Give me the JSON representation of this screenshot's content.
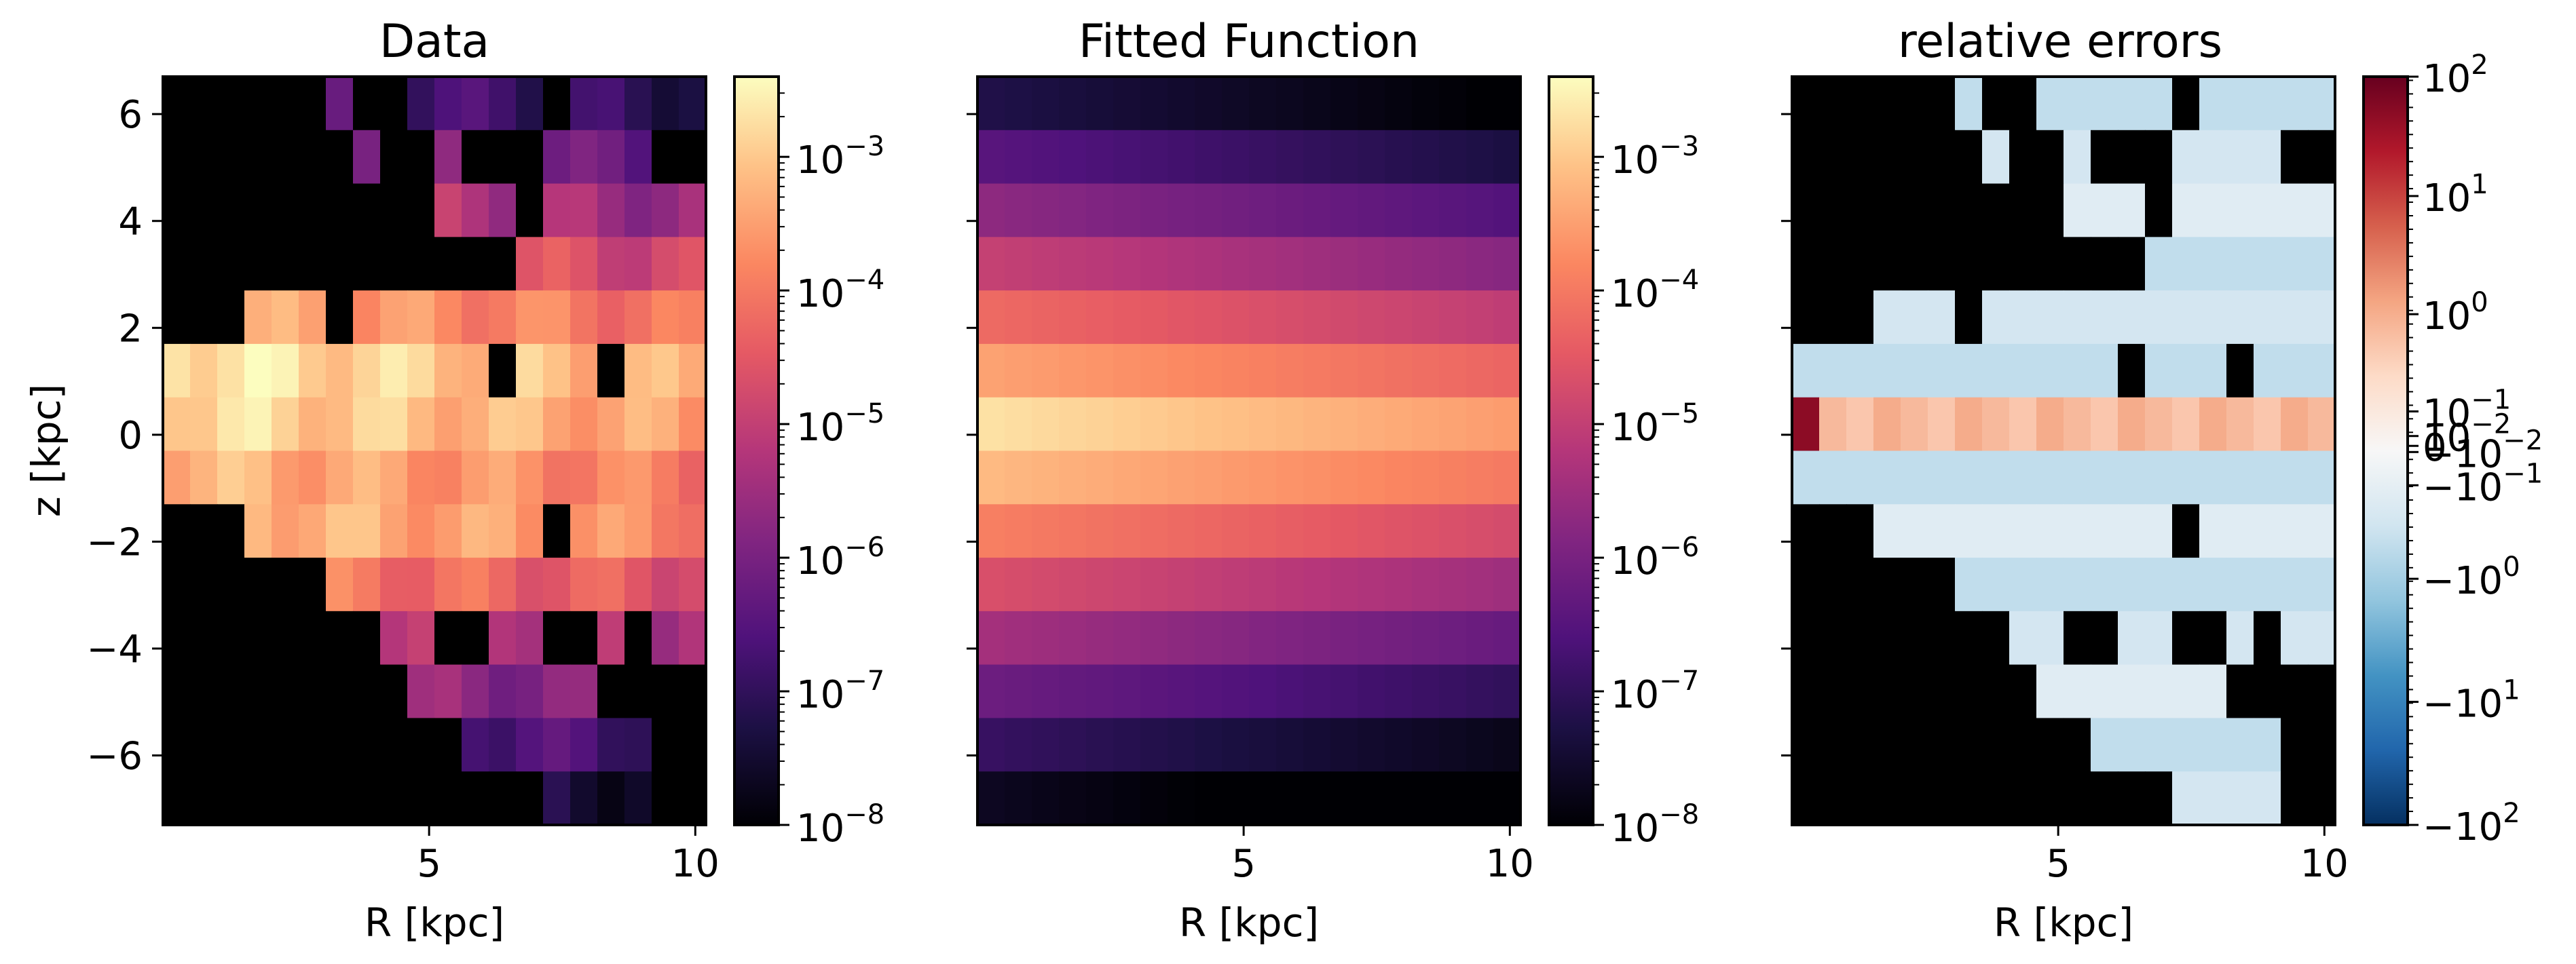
{
  "chart_data": [
    {
      "type": "heatmap",
      "title": "Data",
      "xlabel": "R [kpc]",
      "ylabel": "z [kpc]",
      "xlim": [
        0.0,
        10.2
      ],
      "ylim": [
        -7.3,
        6.7
      ],
      "xticks": [
        5,
        10
      ],
      "xtick_labels": [
        "5",
        "10"
      ],
      "yticks": [
        6,
        4,
        2,
        0,
        -2,
        -4,
        -6
      ],
      "ytick_labels": [
        "6",
        "4",
        "2",
        "0",
        "−2",
        "−4",
        "−6"
      ],
      "grid": false,
      "colormap": "magma",
      "color_scale": "log",
      "colorbar": {
        "vmin_exp": -8,
        "vmax_exp": -2.4,
        "tick_exps": [
          -8,
          -7,
          -6,
          -5,
          -4,
          -3
        ],
        "tick_base": "10",
        "tick_exps_labels": [
          "−8",
          "−7",
          "−6",
          "−5",
          "−4",
          "−3"
        ]
      },
      "cells": "log10 density per (R,z) bin; null = empty bin (black)"
    },
    {
      "type": "heatmap",
      "title": "Fitted Function",
      "xlabel": "R [kpc]",
      "xlim": [
        0.0,
        10.2
      ],
      "ylim": [
        -7.3,
        6.7
      ],
      "xticks": [
        5,
        10
      ],
      "xtick_labels": [
        "5",
        "10"
      ],
      "colormap": "magma",
      "color_scale": "log",
      "colorbar": {
        "vmin_exp": -8,
        "vmax_exp": -2.4,
        "tick_exps": [
          -8,
          -7,
          -6,
          -5,
          -4,
          -3
        ],
        "tick_base": "10",
        "tick_exps_labels": [
          "−8",
          "−7",
          "−6",
          "−5",
          "−4",
          "−3"
        ]
      }
    },
    {
      "type": "heatmap",
      "title": "relative errors",
      "xlabel": "R [kpc]",
      "xlim": [
        0.0,
        10.2
      ],
      "ylim": [
        -7.3,
        6.7
      ],
      "xticks": [
        5,
        10
      ],
      "xtick_labels": [
        "5",
        "10"
      ],
      "colormap": "RdBu_r",
      "color_scale": "symlog",
      "colorbar": {
        "labels": [
          {
            "base": "10",
            "exp": "2",
            "value": 2.3
          },
          {
            "base": "10",
            "exp": "1",
            "value": 1.33
          },
          {
            "base": "10",
            "exp": "0",
            "value": 0.37
          },
          {
            "base": "10",
            "exp": "−1",
            "value": -0.42
          },
          {
            "base": "10",
            "exp": "−2",
            "value": -0.62
          },
          {
            "base": "0",
            "exp": "",
            "value": -0.7
          },
          {
            "base": "−10",
            "exp": "−2",
            "value": -0.75
          },
          {
            "base": "−10",
            "exp": "−1",
            "value": -1.02
          },
          {
            "base": "−10",
            "exp": "0",
            "value": -1.78
          },
          {
            "base": "−10",
            "exp": "1",
            "value": -2.78
          },
          {
            "base": "−10",
            "exp": "2",
            "value": -3.78
          }
        ]
      }
    }
  ]
}
